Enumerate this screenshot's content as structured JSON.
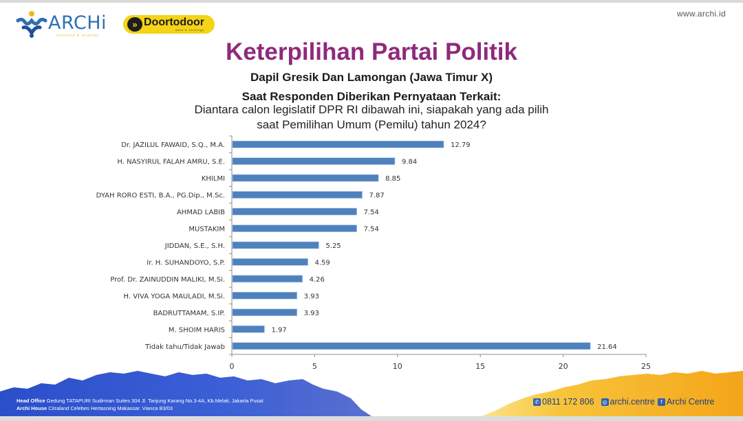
{
  "header": {
    "logo_archi": "ARCHi",
    "logo_archi_tagline": "research & strategy",
    "logo_doortodoor": "Doortodoor",
    "logo_doortodoor_tagline": "data & strategy",
    "website": "www.archi.id"
  },
  "title": "Keterpilihan Partai Politik",
  "subtitle": "Dapil Gresik Dan Lamongan (Jawa  Timur  X)",
  "statement_heading": "Saat Responden Diberikan Pernyataan Terkait:",
  "question_line1": "Diantara calon legislatif DPR RI dibawah ini, siapakah yang ada pilih",
  "question_line2": "saat Pemilihan Umum (Pemilu) tahun 2024?",
  "chart_data": {
    "type": "bar",
    "orientation": "horizontal",
    "categories": [
      "Dr. JAZILUL FAWAID, S.Q., M.A.",
      "H. NASYIRUL FALAH AMRU, S.E.",
      "KHILMI",
      "DYAH RORO ESTI, B.A., PG.Dip., M.Sc.",
      "AHMAD LABIB",
      "MUSTAKIM",
      "JIDDAN, S.E., S.H.",
      "Ir. H. SUHANDOYO, S.P.",
      "Prof. Dr. ZAINUDDIN MALIKI, M.Si.",
      "H. VIVA YOGA MAULADI, M.Si.",
      "BADRUTTAMAM, S.IP.",
      "M. SHOIM HARIS",
      "Tidak tahu/Tidak Jawab"
    ],
    "values": [
      12.79,
      9.84,
      8.85,
      7.87,
      7.54,
      7.54,
      5.25,
      4.59,
      4.26,
      3.93,
      3.93,
      1.97,
      21.64
    ],
    "value_labels": [
      "12.79",
      "9.84",
      "8.85",
      "7.87",
      "7.54",
      "7.54",
      "5.25",
      "4.59",
      "4.26",
      "3.93",
      "3.93",
      "1.97",
      "21.64"
    ],
    "xlim": [
      0,
      25
    ],
    "xticks": [
      0,
      5,
      10,
      15,
      20,
      25
    ],
    "xtick_labels": [
      "0",
      "5",
      "10",
      "15",
      "20",
      "25"
    ],
    "title": "",
    "xlabel": "",
    "ylabel": "",
    "grid": false,
    "legend": "none",
    "bar_color": "#4f81bd"
  },
  "footer": {
    "head_office_label": "Head Office",
    "head_office_address": "Gedung TATAPURI Sudirman Suites 304 Jl. Tanjung Karang No.3-4A, Kb.Melati, Jakarta Pusat",
    "archi_house_label": "Archi House",
    "archi_house_address": "Citraland Celebes Hertasning Makassar. Vianca B3/03",
    "phone": "0811 172 806",
    "instagram": "archi.centre",
    "facebook": "Archi Centre",
    "blue_color": "#2f4fc4",
    "yellow_color": "#f6b81f"
  }
}
